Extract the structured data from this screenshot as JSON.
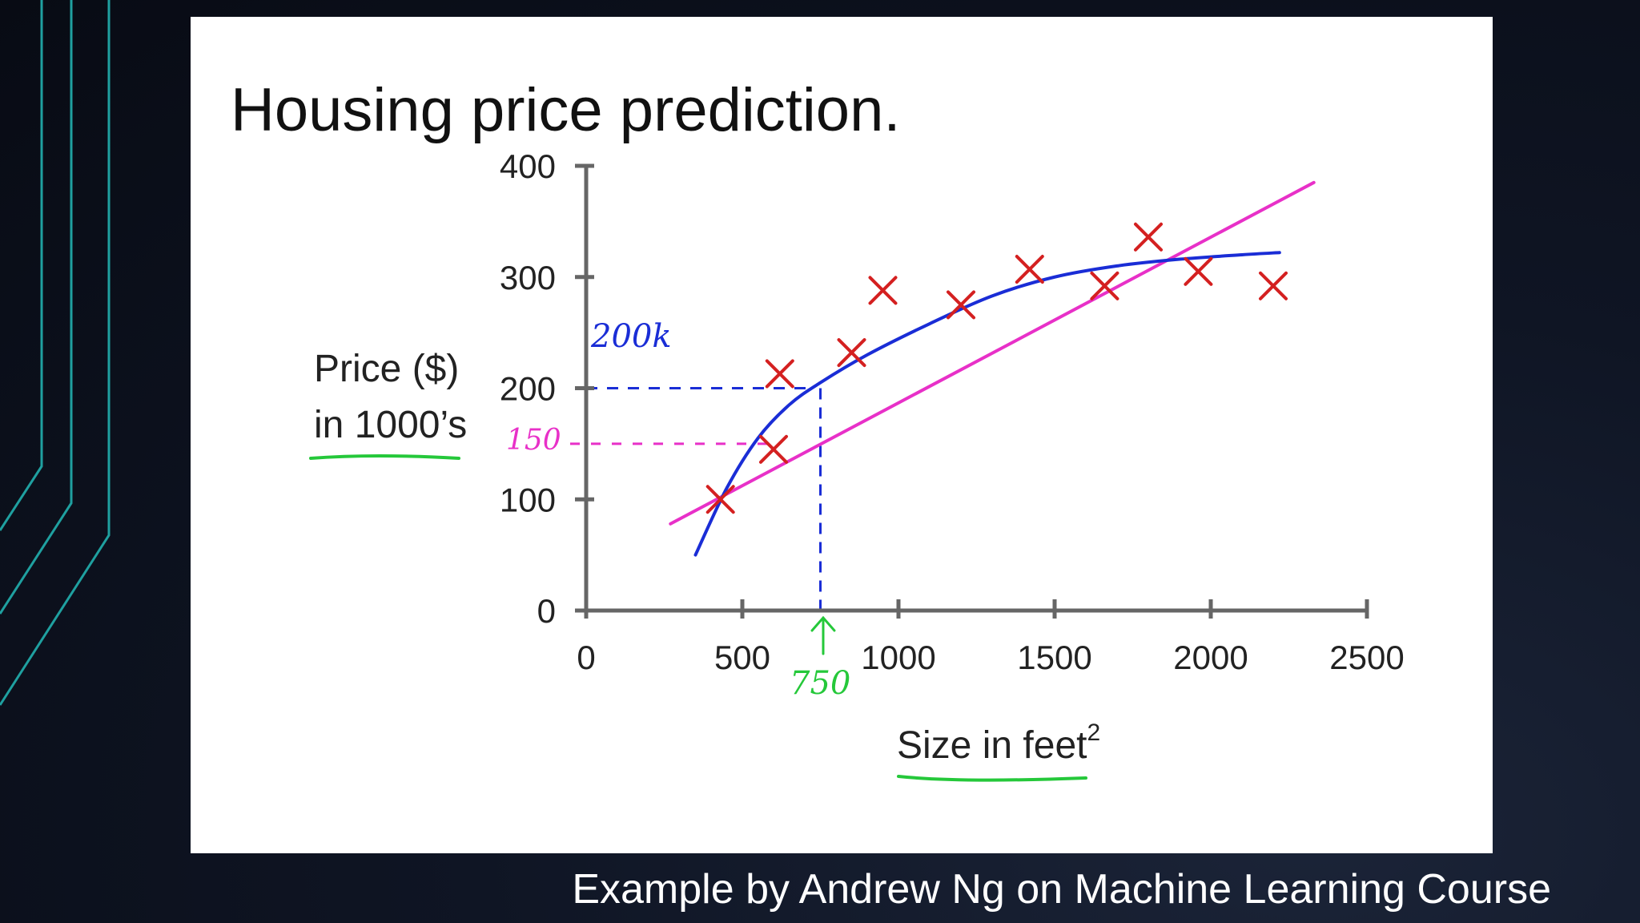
{
  "colors": {
    "axis": "#666666",
    "markers": "#d42020",
    "curve": "#1a2dd6",
    "linear_fit": "#e830c8",
    "underline": "#25c83a",
    "frame_lines": "#1fa0a0"
  },
  "caption": "Example by Andrew Ng on Machine Learning Course",
  "chart_data": {
    "type": "scatter",
    "title": "Housing price prediction.",
    "xlabel": "Size in feet",
    "xlabel_superscript": "2",
    "ylabel_line1": "Price ($)",
    "ylabel_line2": "in 1000’s",
    "xlim": [
      0,
      2500
    ],
    "ylim": [
      0,
      400
    ],
    "x_ticks": [
      "0",
      "500",
      "1000",
      "1500",
      "2000",
      "2500"
    ],
    "y_ticks": [
      "0",
      "100",
      "200",
      "300",
      "400"
    ],
    "points": [
      {
        "x": 430,
        "y": 100
      },
      {
        "x": 600,
        "y": 145
      },
      {
        "x": 620,
        "y": 213
      },
      {
        "x": 850,
        "y": 232
      },
      {
        "x": 950,
        "y": 288
      },
      {
        "x": 1200,
        "y": 275
      },
      {
        "x": 1420,
        "y": 307
      },
      {
        "x": 1660,
        "y": 292
      },
      {
        "x": 1800,
        "y": 336
      },
      {
        "x": 1960,
        "y": 305
      },
      {
        "x": 2200,
        "y": 292
      }
    ],
    "series": [
      {
        "type": "curve",
        "x": [
          350,
          450,
          550,
          650,
          750,
          900,
          1100,
          1300,
          1500,
          1700,
          1900,
          2100,
          2220
        ],
        "y": [
          50,
          110,
          155,
          185,
          205,
          230,
          258,
          283,
          300,
          310,
          316,
          320,
          322
        ]
      },
      {
        "type": "line",
        "x": [
          270,
          2330
        ],
        "y": [
          78,
          385
        ]
      }
    ],
    "annotations": {
      "value_200k": "200k",
      "value_150": "150",
      "value_750": "750",
      "query_x": 750,
      "guide_y_blue": 200,
      "guide_y_pink": 150
    }
  }
}
